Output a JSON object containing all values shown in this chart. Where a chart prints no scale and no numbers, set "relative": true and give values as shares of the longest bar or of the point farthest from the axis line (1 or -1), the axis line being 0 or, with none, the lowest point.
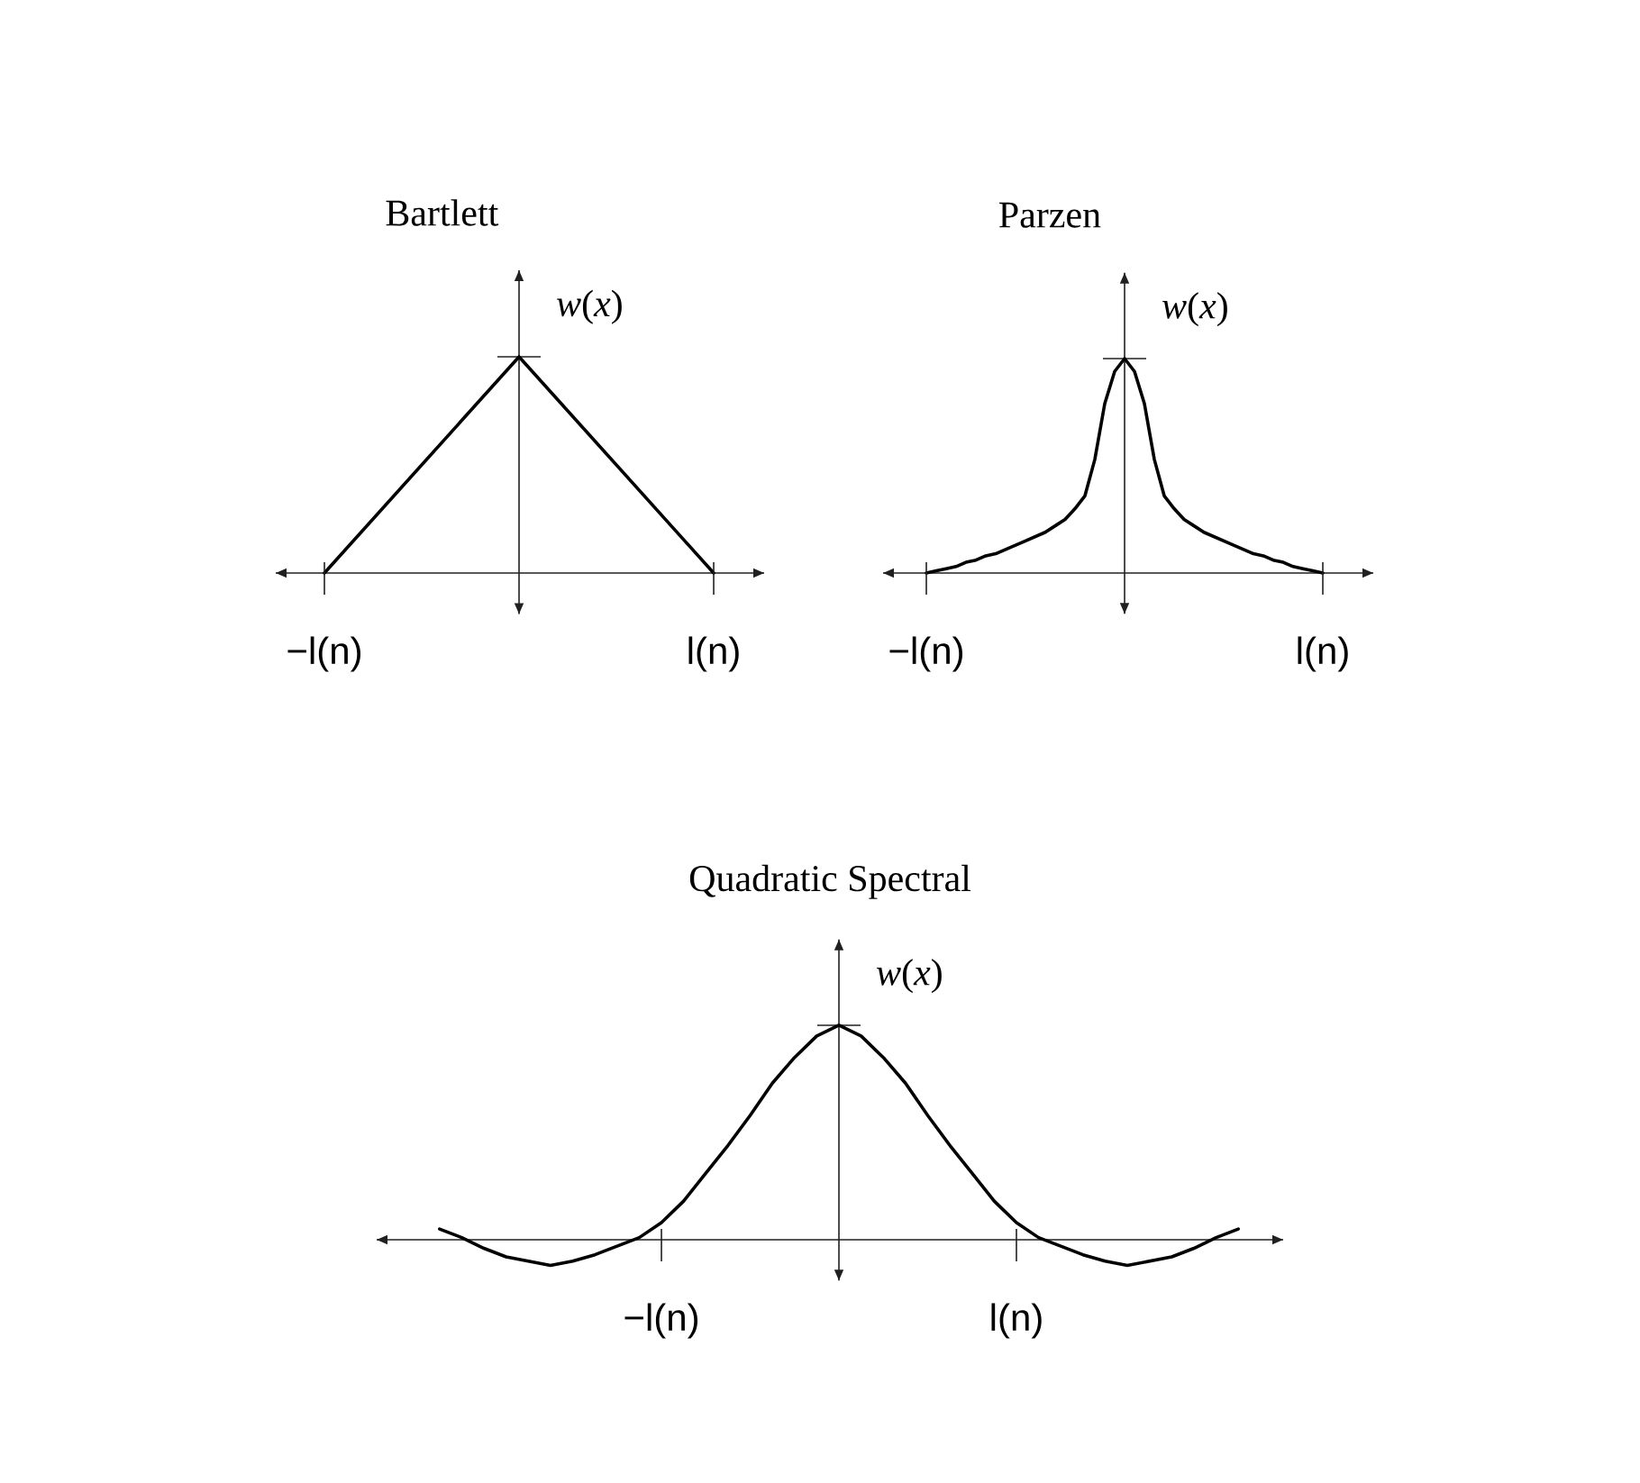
{
  "chart_data": [
    {
      "type": "line",
      "title": "Bartlett",
      "ylabel": "*w*(*x*)",
      "relative": true,
      "categories": [
        "−l(n)",
        null,
        "l(n)"
      ],
      "series": [
        {
          "color": "#000000",
          "values": [
            0,
            1,
            0
          ]
        }
      ]
    },
    {
      "type": "line",
      "title": "Parzen",
      "ylabel": "*w*(*x*)",
      "relative": true,
      "categories": [
        "−l(n)",
        null,
        null,
        null,
        null,
        null,
        null,
        null,
        null,
        null,
        null,
        null,
        null,
        null,
        null,
        null,
        null,
        null,
        null,
        null,
        null,
        null,
        null,
        null,
        null,
        null,
        null,
        null,
        null,
        null,
        null,
        null,
        null,
        null,
        null,
        null,
        null,
        null,
        null,
        null,
        "l(n)"
      ],
      "series": [
        {
          "color": "#000000",
          "values": [
            0,
            0.01,
            0.02,
            0.03,
            0.05,
            0.06,
            0.08,
            0.09,
            0.11,
            0.13,
            0.15,
            0.17,
            0.19,
            0.22,
            0.25,
            0.3,
            0.36,
            0.53,
            0.79,
            0.94,
            1,
            0.94,
            0.79,
            0.53,
            0.36,
            0.3,
            0.25,
            0.22,
            0.19,
            0.17,
            0.15,
            0.13,
            0.11,
            0.09,
            0.08,
            0.06,
            0.05,
            0.03,
            0.02,
            0.01,
            0
          ]
        }
      ]
    },
    {
      "type": "line",
      "title": "Quadratic Spectral",
      "ylabel": "*w*(*x*)",
      "relative": true,
      "categories": [
        null,
        null,
        null,
        null,
        null,
        null,
        null,
        null,
        null,
        null,
        "−l(n)",
        null,
        null,
        null,
        null,
        null,
        null,
        null,
        null,
        null,
        null,
        null,
        null,
        null,
        null,
        null,
        "l(n)",
        null,
        null,
        null,
        null,
        null,
        null,
        null,
        null,
        null,
        null
      ],
      "series": [
        {
          "color": "#000000",
          "values": [
            0.05,
            0.01,
            -0.04,
            -0.08,
            -0.1,
            -0.12,
            -0.1,
            -0.07,
            -0.03,
            0.01,
            0.08,
            0.18,
            0.31,
            0.44,
            0.58,
            0.73,
            0.85,
            0.95,
            1,
            0.95,
            0.85,
            0.73,
            0.58,
            0.44,
            0.31,
            0.18,
            0.08,
            0.01,
            -0.03,
            -0.07,
            -0.1,
            -0.12,
            -0.1,
            -0.08,
            -0.04,
            0.01,
            0.05
          ]
        }
      ]
    }
  ]
}
